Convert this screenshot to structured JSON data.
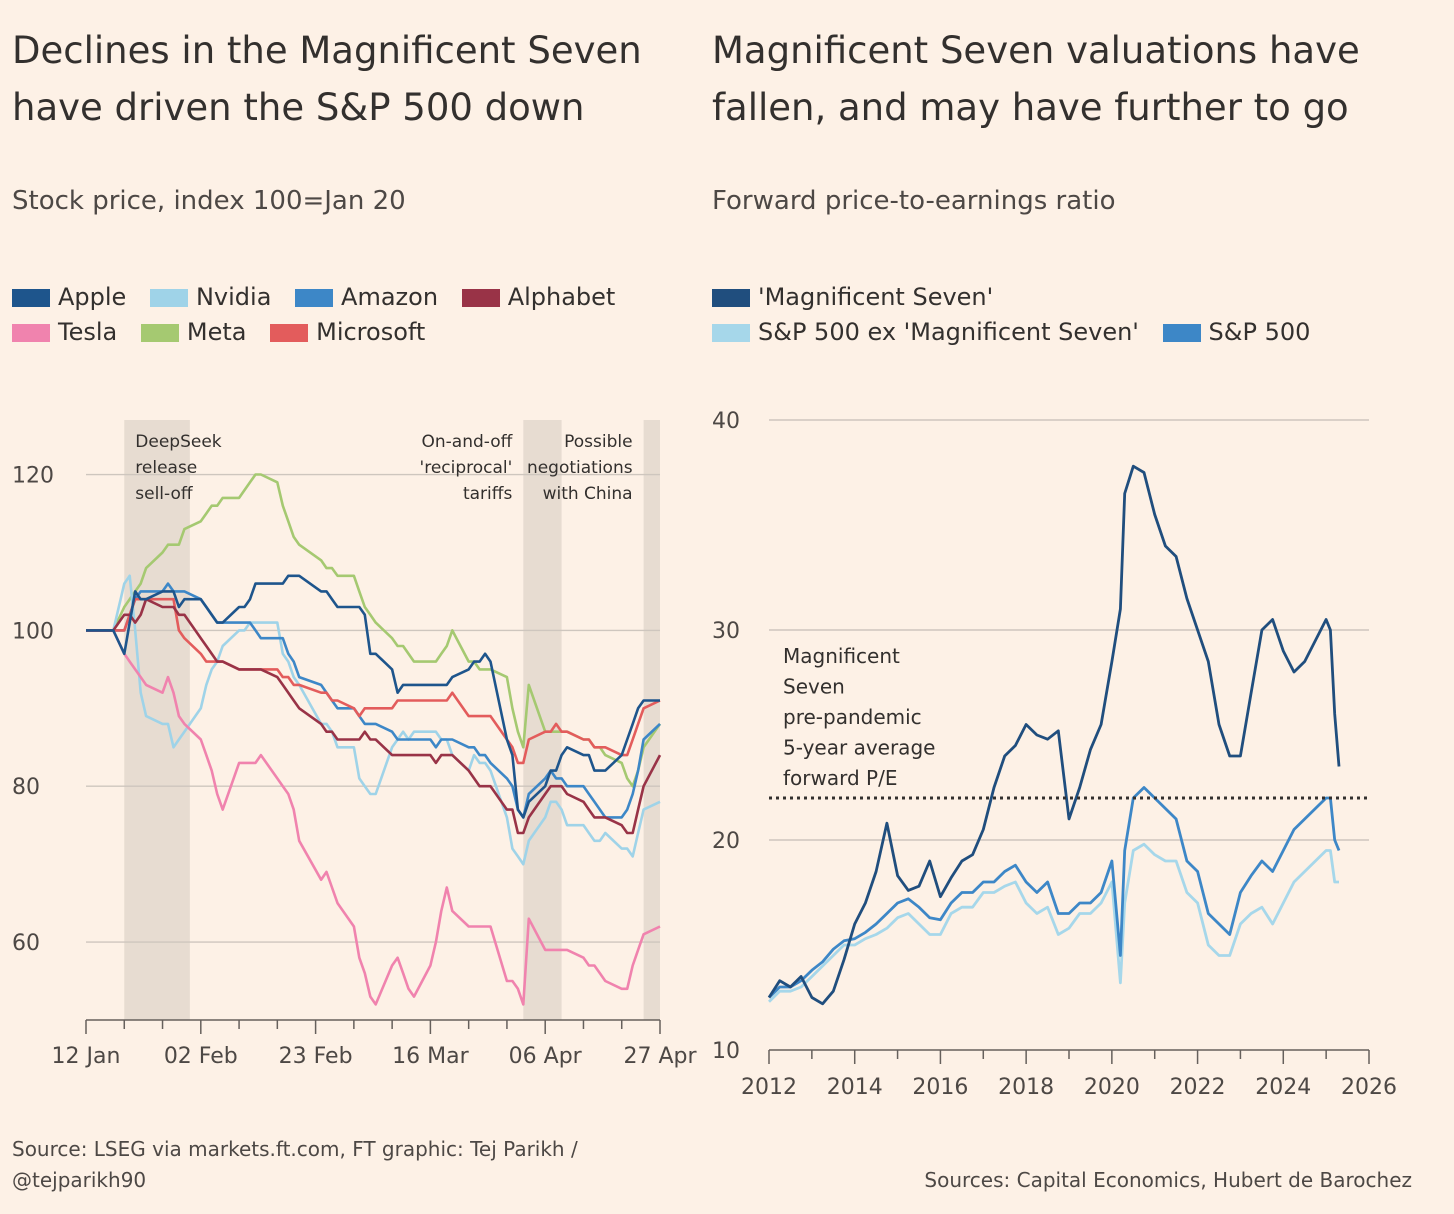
{
  "left": {
    "title_line1": "Declines in the Magnificent Seven",
    "title_line2": "have driven the S&P 500 down",
    "subtitle": "Stock price, index 100=Jan 20",
    "source_line1": "Source: LSEG via markets.ft.com, FT graphic: Tej Parikh /",
    "source_line2": "@tejparikh90"
  },
  "right": {
    "title_line1": "Magnificent Seven valuations have",
    "title_line2": "fallen, and may have further to go",
    "subtitle": "Forward price-to-earnings ratio",
    "source": "Sources: Capital Economics, Hubert de Barochez"
  },
  "chart_data": [
    {
      "type": "line",
      "title": "Declines in the Magnificent Seven have driven the S&P 500 down",
      "subtitle": "Stock price, index 100=Jan 20",
      "x_ticks": [
        "12 Jan",
        "02 Feb",
        "23 Feb",
        "16 Mar",
        "06 Apr",
        "27 Apr"
      ],
      "y_ticks": [
        60,
        80,
        100,
        120
      ],
      "ylim": [
        50,
        127
      ],
      "xlim_days": [
        0,
        105
      ],
      "grid": true,
      "legend_position": "top",
      "shaded_periods": [
        {
          "start_day": 7,
          "end_day": 19,
          "label": [
            "DeepSeek",
            "release",
            "sell-off"
          ]
        },
        {
          "start_day": 80,
          "end_day": 87,
          "label": [
            "On-and-off",
            "'reciprocal'",
            "tariffs"
          ]
        },
        {
          "start_day": 102,
          "end_day": 105,
          "label": [
            "Possible",
            "negotiations",
            "with China"
          ]
        }
      ],
      "x_days": [
        0,
        3,
        5,
        7,
        8,
        9,
        10,
        11,
        14,
        15,
        16,
        17,
        18,
        21,
        22,
        23,
        24,
        25,
        28,
        29,
        30,
        31,
        32,
        35,
        36,
        37,
        38,
        39,
        43,
        44,
        45,
        46,
        49,
        50,
        51,
        52,
        53,
        56,
        57,
        58,
        59,
        60,
        63,
        64,
        65,
        66,
        67,
        70,
        71,
        72,
        73,
        74,
        77,
        78,
        79,
        80,
        81,
        84,
        85,
        86,
        87,
        88,
        91,
        92,
        93,
        94,
        95,
        98,
        99,
        100,
        101,
        102,
        105
      ],
      "series": [
        {
          "name": "Apple",
          "color": "#1e558c",
          "values": [
            100,
            100,
            100,
            97,
            101,
            105,
            104,
            104,
            105,
            105,
            105,
            103,
            104,
            104,
            103,
            102,
            101,
            101,
            103,
            103,
            104,
            106,
            106,
            106,
            106,
            107,
            107,
            107,
            105,
            105,
            104,
            103,
            103,
            103,
            102,
            97,
            97,
            95,
            92,
            93,
            93,
            93,
            93,
            93,
            93,
            93,
            94,
            95,
            96,
            96,
            97,
            96,
            86,
            84,
            77,
            76,
            78,
            80,
            82,
            82,
            84,
            85,
            84,
            84,
            82,
            82,
            82,
            84,
            86,
            88,
            90,
            91,
            91
          ]
        },
        {
          "name": "Nvidia",
          "color": "#9fd3e8",
          "values": [
            100,
            100,
            100,
            106,
            107,
            100,
            92,
            89,
            88,
            88,
            85,
            86,
            87,
            90,
            93,
            95,
            96,
            98,
            100,
            100,
            101,
            101,
            101,
            101,
            97,
            96,
            94,
            93,
            88,
            88,
            87,
            85,
            85,
            81,
            80,
            79,
            79,
            85,
            86,
            87,
            86,
            87,
            87,
            87,
            86,
            86,
            84,
            82,
            84,
            83,
            83,
            82,
            76,
            72,
            71,
            70,
            73,
            76,
            78,
            78,
            77,
            75,
            75,
            74,
            73,
            73,
            74,
            72,
            72,
            71,
            74,
            77,
            78
          ]
        },
        {
          "name": "Amazon",
          "color": "#3d87c7",
          "values": [
            100,
            100,
            100,
            100,
            102,
            104,
            105,
            105,
            105,
            106,
            105,
            105,
            105,
            104,
            103,
            102,
            101,
            101,
            101,
            101,
            101,
            100,
            99,
            99,
            99,
            97,
            96,
            94,
            93,
            92,
            91,
            90,
            90,
            89,
            88,
            88,
            88,
            87,
            86,
            86,
            86,
            86,
            86,
            85,
            86,
            86,
            86,
            85,
            85,
            84,
            84,
            83,
            81,
            80,
            77,
            76,
            79,
            81,
            82,
            81,
            81,
            80,
            80,
            79,
            78,
            77,
            76,
            76,
            77,
            79,
            82,
            86,
            88
          ]
        },
        {
          "name": "Alphabet",
          "color": "#993347",
          "values": [
            100,
            100,
            100,
            102,
            102,
            101,
            102,
            104,
            103,
            103,
            103,
            102,
            102,
            99,
            98,
            97,
            96,
            96,
            95,
            95,
            95,
            95,
            95,
            94,
            93,
            92,
            91,
            90,
            88,
            87,
            87,
            86,
            86,
            86,
            87,
            86,
            86,
            84,
            84,
            84,
            84,
            84,
            84,
            83,
            84,
            84,
            84,
            82,
            81,
            80,
            80,
            80,
            77,
            77,
            74,
            74,
            76,
            79,
            80,
            80,
            80,
            79,
            78,
            77,
            76,
            76,
            76,
            75,
            74,
            74,
            77,
            80,
            84
          ]
        },
        {
          "name": "Tesla",
          "color": "#f083ae",
          "values": [
            100,
            100,
            100,
            97,
            96,
            95,
            94,
            93,
            92,
            94,
            92,
            89,
            88,
            86,
            84,
            82,
            79,
            77,
            83,
            83,
            83,
            83,
            84,
            81,
            80,
            79,
            77,
            73,
            68,
            69,
            67,
            65,
            62,
            58,
            56,
            53,
            52,
            57,
            58,
            56,
            54,
            53,
            57,
            60,
            64,
            67,
            64,
            62,
            62,
            62,
            62,
            62,
            55,
            55,
            54,
            52,
            63,
            59,
            59,
            59,
            59,
            59,
            58,
            57,
            57,
            56,
            55,
            54,
            54,
            57,
            59,
            61,
            62
          ]
        },
        {
          "name": "Meta",
          "color": "#a5c971",
          "values": [
            100,
            100,
            100,
            103,
            104,
            105,
            106,
            108,
            110,
            111,
            111,
            111,
            113,
            114,
            115,
            116,
            116,
            117,
            117,
            118,
            119,
            120,
            120,
            119,
            116,
            114,
            112,
            111,
            109,
            108,
            108,
            107,
            107,
            105,
            103,
            102,
            101,
            99,
            98,
            98,
            97,
            96,
            96,
            96,
            97,
            98,
            100,
            96,
            96,
            95,
            95,
            95,
            94,
            90,
            87,
            85,
            93,
            87,
            87,
            87,
            87,
            87,
            86,
            86,
            85,
            85,
            84,
            83,
            81,
            80,
            82,
            85,
            88
          ]
        },
        {
          "name": "Microsoft",
          "color": "#e35c5c",
          "values": [
            100,
            100,
            100,
            100,
            102,
            104,
            104,
            104,
            104,
            104,
            104,
            100,
            99,
            97,
            96,
            96,
            96,
            96,
            95,
            95,
            95,
            95,
            95,
            95,
            94,
            94,
            93,
            93,
            92,
            92,
            91,
            91,
            90,
            89,
            90,
            90,
            90,
            90,
            91,
            91,
            91,
            91,
            91,
            91,
            91,
            91,
            92,
            89,
            89,
            89,
            89,
            89,
            86,
            85,
            83,
            83,
            86,
            87,
            87,
            88,
            87,
            87,
            86,
            86,
            85,
            85,
            85,
            84,
            84,
            86,
            88,
            90,
            91
          ]
        }
      ]
    },
    {
      "type": "line",
      "title": "Magnificent Seven valuations have fallen, and may have further to go",
      "subtitle": "Forward price-to-earnings ratio",
      "x_ticks": [
        2012,
        2014,
        2016,
        2018,
        2020,
        2022,
        2024,
        2026
      ],
      "y_ticks": [
        10,
        20,
        30,
        40
      ],
      "xlim": [
        2012,
        2026
      ],
      "ylim": [
        10,
        40
      ],
      "grid": true,
      "legend_position": "top",
      "reference_line": {
        "value": 22,
        "label": [
          "Magnificent",
          "Seven",
          "pre-pandemic",
          "5-year average",
          "forward P/E"
        ]
      },
      "x": [
        2012.0,
        2012.25,
        2012.5,
        2012.75,
        2013.0,
        2013.25,
        2013.5,
        2013.75,
        2014.0,
        2014.25,
        2014.5,
        2014.75,
        2015.0,
        2015.25,
        2015.5,
        2015.75,
        2016.0,
        2016.25,
        2016.5,
        2016.75,
        2017.0,
        2017.25,
        2017.5,
        2017.75,
        2018.0,
        2018.25,
        2018.5,
        2018.75,
        2019.0,
        2019.25,
        2019.5,
        2019.75,
        2020.0,
        2020.2,
        2020.3,
        2020.5,
        2020.75,
        2021.0,
        2021.25,
        2021.5,
        2021.75,
        2022.0,
        2022.25,
        2022.5,
        2022.75,
        2023.0,
        2023.25,
        2023.5,
        2023.75,
        2024.0,
        2024.25,
        2024.5,
        2024.75,
        2025.0,
        2025.1,
        2025.2,
        2025.3
      ],
      "series": [
        {
          "name": "'Magnificent Seven'",
          "color": "#204e7e",
          "values": [
            12.5,
            13.3,
            13.0,
            13.5,
            12.5,
            12.2,
            12.8,
            14.3,
            16.0,
            17.0,
            18.5,
            20.8,
            18.3,
            17.6,
            17.8,
            19.0,
            17.3,
            18.2,
            19.0,
            19.3,
            20.5,
            22.5,
            24.0,
            24.5,
            25.5,
            25.0,
            24.8,
            25.2,
            21.0,
            22.5,
            24.3,
            25.5,
            28.5,
            31.0,
            36.5,
            37.8,
            37.5,
            35.5,
            34.0,
            33.5,
            31.5,
            30.0,
            28.5,
            25.5,
            24.0,
            24.0,
            27.0,
            30.0,
            30.5,
            29.0,
            28.0,
            28.5,
            29.5,
            30.5,
            30.0,
            26.0,
            23.5
          ]
        },
        {
          "name": "S&P 500 ex 'Magnificent Seven'",
          "color": "#a6d7ea",
          "values": [
            12.3,
            12.8,
            12.8,
            13.0,
            13.5,
            14.0,
            14.5,
            15.0,
            15.0,
            15.3,
            15.5,
            15.8,
            16.3,
            16.5,
            16.0,
            15.5,
            15.5,
            16.5,
            16.8,
            16.8,
            17.5,
            17.5,
            17.8,
            18.0,
            17.0,
            16.5,
            16.8,
            15.5,
            15.8,
            16.5,
            16.5,
            17.0,
            18.0,
            13.2,
            17.0,
            19.5,
            19.8,
            19.3,
            19.0,
            19.0,
            17.5,
            17.0,
            15.0,
            14.5,
            14.5,
            16.0,
            16.5,
            16.8,
            16.0,
            17.0,
            18.0,
            18.5,
            19.0,
            19.5,
            19.5,
            18.0,
            18.0
          ]
        },
        {
          "name": "S&P 500",
          "color": "#3d87c7",
          "values": [
            12.5,
            13.0,
            13.0,
            13.3,
            13.8,
            14.2,
            14.8,
            15.2,
            15.3,
            15.6,
            16.0,
            16.5,
            17.0,
            17.2,
            16.8,
            16.3,
            16.2,
            17.0,
            17.5,
            17.5,
            18.0,
            18.0,
            18.5,
            18.8,
            18.0,
            17.5,
            18.0,
            16.5,
            16.5,
            17.0,
            17.0,
            17.5,
            19.0,
            14.5,
            19.5,
            22.0,
            22.5,
            22.0,
            21.5,
            21.0,
            19.0,
            18.5,
            16.5,
            16.0,
            15.5,
            17.5,
            18.3,
            19.0,
            18.5,
            19.5,
            20.5,
            21.0,
            21.5,
            22.0,
            22.0,
            20.0,
            19.5
          ]
        }
      ]
    }
  ]
}
